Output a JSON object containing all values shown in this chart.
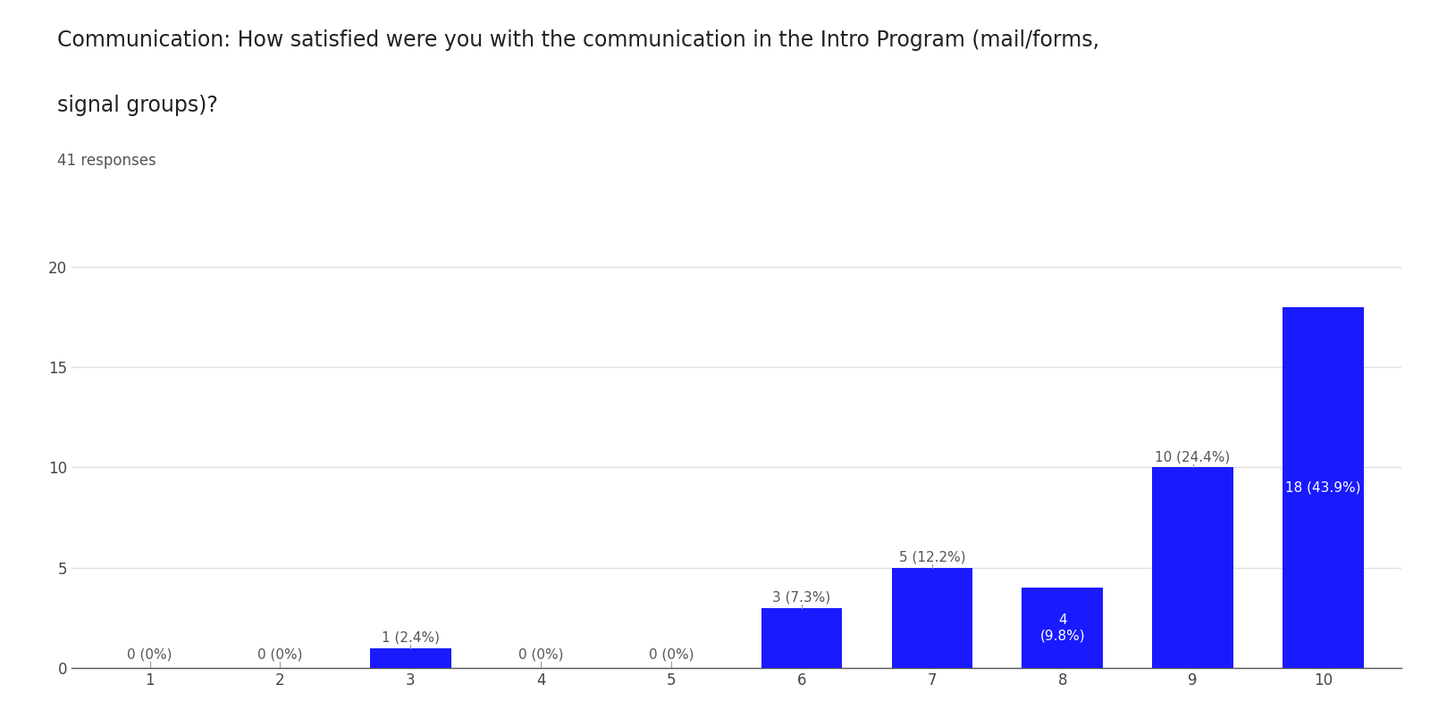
{
  "title_line1": "Communication: How satisfied were you with the communication in the Intro Program (mail/forms,",
  "title_line2": "signal groups)?",
  "subtitle": "41 responses",
  "categories": [
    1,
    2,
    3,
    4,
    5,
    6,
    7,
    8,
    9,
    10
  ],
  "values": [
    0,
    0,
    1,
    0,
    0,
    3,
    5,
    4,
    10,
    18
  ],
  "labels": [
    "0 (0%)",
    "0 (0%)",
    "1 (2.4%)",
    "0 (0%)",
    "0 (0%)",
    "3 (7.3%)",
    "5 (12.2%)",
    "4\n(9.8%)",
    "10 (24.4%)",
    "18 (43.9%)"
  ],
  "inside_label_indices": [
    7,
    9
  ],
  "bar_color": "#1a1aff",
  "background_color": "#ffffff",
  "grid_color": "#e0e0e0",
  "ylim": [
    0,
    21
  ],
  "yticks": [
    0,
    5,
    10,
    15,
    20
  ],
  "title_fontsize": 17,
  "subtitle_fontsize": 12,
  "label_fontsize": 11,
  "tick_fontsize": 12,
  "label_color_outside": "#555555",
  "label_color_inside": "#ffffff",
  "bar_width": 0.62
}
